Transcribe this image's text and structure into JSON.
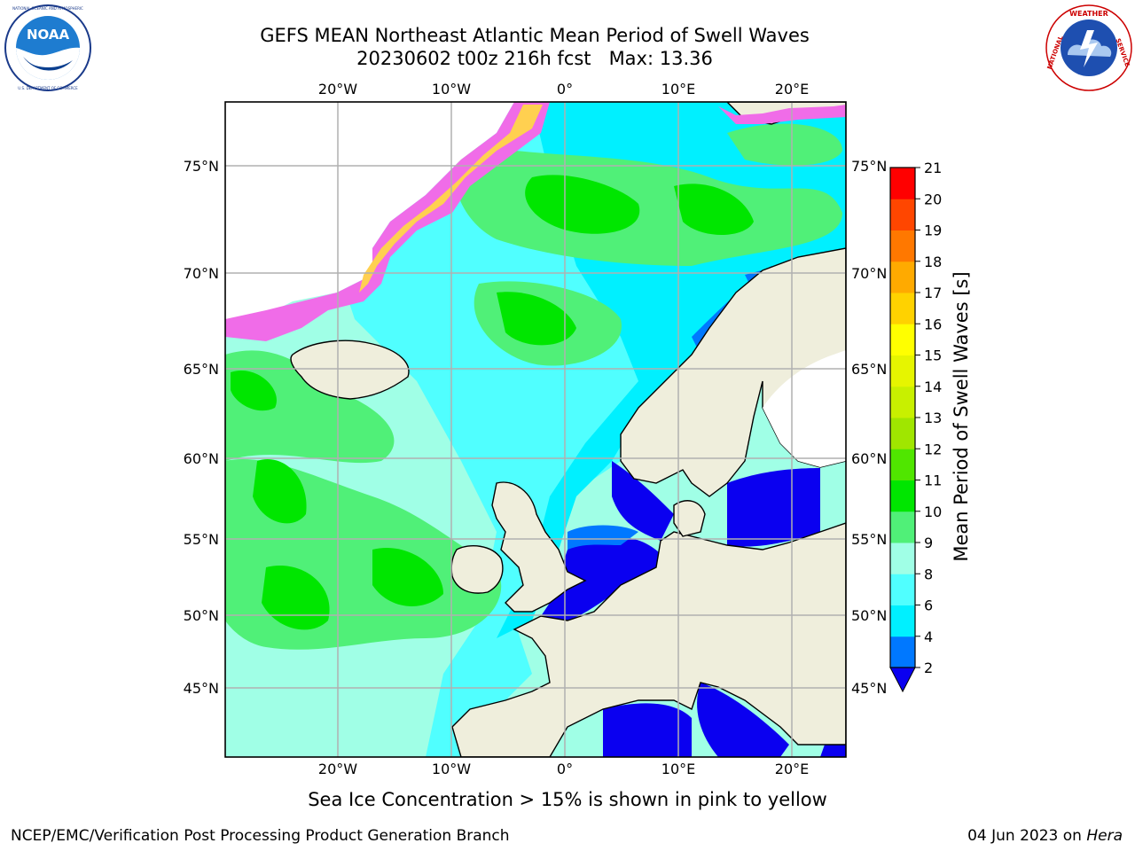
{
  "title": {
    "line1": "GEFS MEAN Northeast Atlantic Mean Period of Swell Waves",
    "line2": "20230602 t00z 216h fcst   Max: 13.36"
  },
  "logos": {
    "left": {
      "icon": "noaa-logo",
      "text": "NOAA",
      "ring_text": "NATIONAL OCEANIC AND ATMOSPHERIC ADMINISTRATION · U.S. DEPARTMENT OF COMMERCE"
    },
    "right": {
      "icon": "nws-logo",
      "ring_text": "NATIONAL WEATHER SERVICE"
    }
  },
  "map": {
    "lon_ticks_top": [
      "20°W",
      "10°W",
      "0°",
      "10°E",
      "20°E"
    ],
    "lon_ticks_bottom": [
      "20°W",
      "10°W",
      "0°",
      "10°E",
      "20°E"
    ],
    "lat_ticks_left": [
      "75°N",
      "70°N",
      "65°N",
      "60°N",
      "55°N",
      "50°N",
      "45°N"
    ],
    "lat_ticks_right": [
      "75°N",
      "70°N",
      "65°N",
      "60°N",
      "55°N",
      "50°N",
      "45°N"
    ],
    "colors": {
      "land": "#efeedc",
      "ice_white": "#ffffff",
      "ice_pink": "#f06ce8",
      "ice_yellow": "#ffd050"
    }
  },
  "colorbar": {
    "label": "Mean Period of Swell Waves [s]",
    "ticks": [
      "2",
      "4",
      "6",
      "8",
      "9",
      "10",
      "11",
      "12",
      "13",
      "14",
      "15",
      "16",
      "17",
      "18",
      "19",
      "20",
      "21"
    ],
    "colors": [
      "#0a00f0",
      "#0078ff",
      "#00f0ff",
      "#50ffff",
      "#a0ffe6",
      "#50f078",
      "#00e600",
      "#50e600",
      "#a0e600",
      "#c8f000",
      "#e6f500",
      "#ffff00",
      "#ffd200",
      "#ffaa00",
      "#ff7800",
      "#ff4600",
      "#ff0000"
    ]
  },
  "subtitle": "Sea Ice Concentration > 15% is shown in pink to yellow",
  "footer": {
    "left": "NCEP/EMC/Verification Post Processing Product Generation Branch",
    "right_prefix": "04 Jun 2023 on ",
    "right_host": "Hera"
  }
}
